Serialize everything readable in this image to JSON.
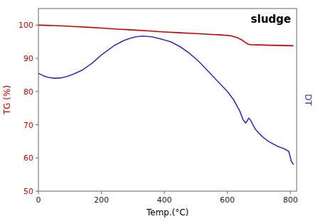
{
  "chart_data": {
    "type": "line",
    "title": "sludge",
    "x_label": "Temp.(°C)",
    "y_label": "TG (%)",
    "y2_label": "DT",
    "xlim": [
      0,
      820
    ],
    "ylim": [
      50,
      105
    ],
    "y2lim": [
      50,
      105
    ],
    "xticks": [
      0,
      200,
      400,
      600,
      800
    ],
    "yticks": [
      50,
      60,
      70,
      80,
      90,
      100
    ],
    "grid": false,
    "series": [
      {
        "color": "#cc0000",
        "x": [
          0,
          20,
          50,
          80,
          120,
          160,
          200,
          250,
          300,
          350,
          400,
          450,
          500,
          550,
          580,
          610,
          630,
          645,
          655,
          665,
          675,
          700,
          730,
          760,
          790,
          810
        ],
        "values": [
          100.0,
          99.95,
          99.85,
          99.75,
          99.55,
          99.35,
          99.1,
          98.8,
          98.55,
          98.25,
          97.95,
          97.7,
          97.45,
          97.2,
          97.05,
          96.8,
          96.3,
          95.6,
          94.9,
          94.3,
          94.1,
          94.05,
          93.95,
          93.9,
          93.85,
          93.8
        ]
      },
      {
        "color": "#3333bb",
        "axis": "y2",
        "x": [
          0,
          15,
          30,
          50,
          70,
          90,
          110,
          140,
          170,
          200,
          240,
          270,
          290,
          310,
          330,
          360,
          390,
          420,
          450,
          480,
          510,
          540,
          570,
          600,
          620,
          640,
          650,
          658,
          663,
          668,
          673,
          678,
          690,
          710,
          730,
          760,
          780,
          795,
          803,
          810
        ],
        "values": [
          85.5,
          84.8,
          84.3,
          84.0,
          84.1,
          84.5,
          85.2,
          86.5,
          88.5,
          91.0,
          93.8,
          95.3,
          96.0,
          96.5,
          96.7,
          96.5,
          95.8,
          95.0,
          93.5,
          91.5,
          89.0,
          86.0,
          83.0,
          80.0,
          77.5,
          74.0,
          71.5,
          70.5,
          71.2,
          72.0,
          71.5,
          70.5,
          68.5,
          66.5,
          65.0,
          63.5,
          62.8,
          62.0,
          59.0,
          58.0
        ]
      }
    ]
  }
}
